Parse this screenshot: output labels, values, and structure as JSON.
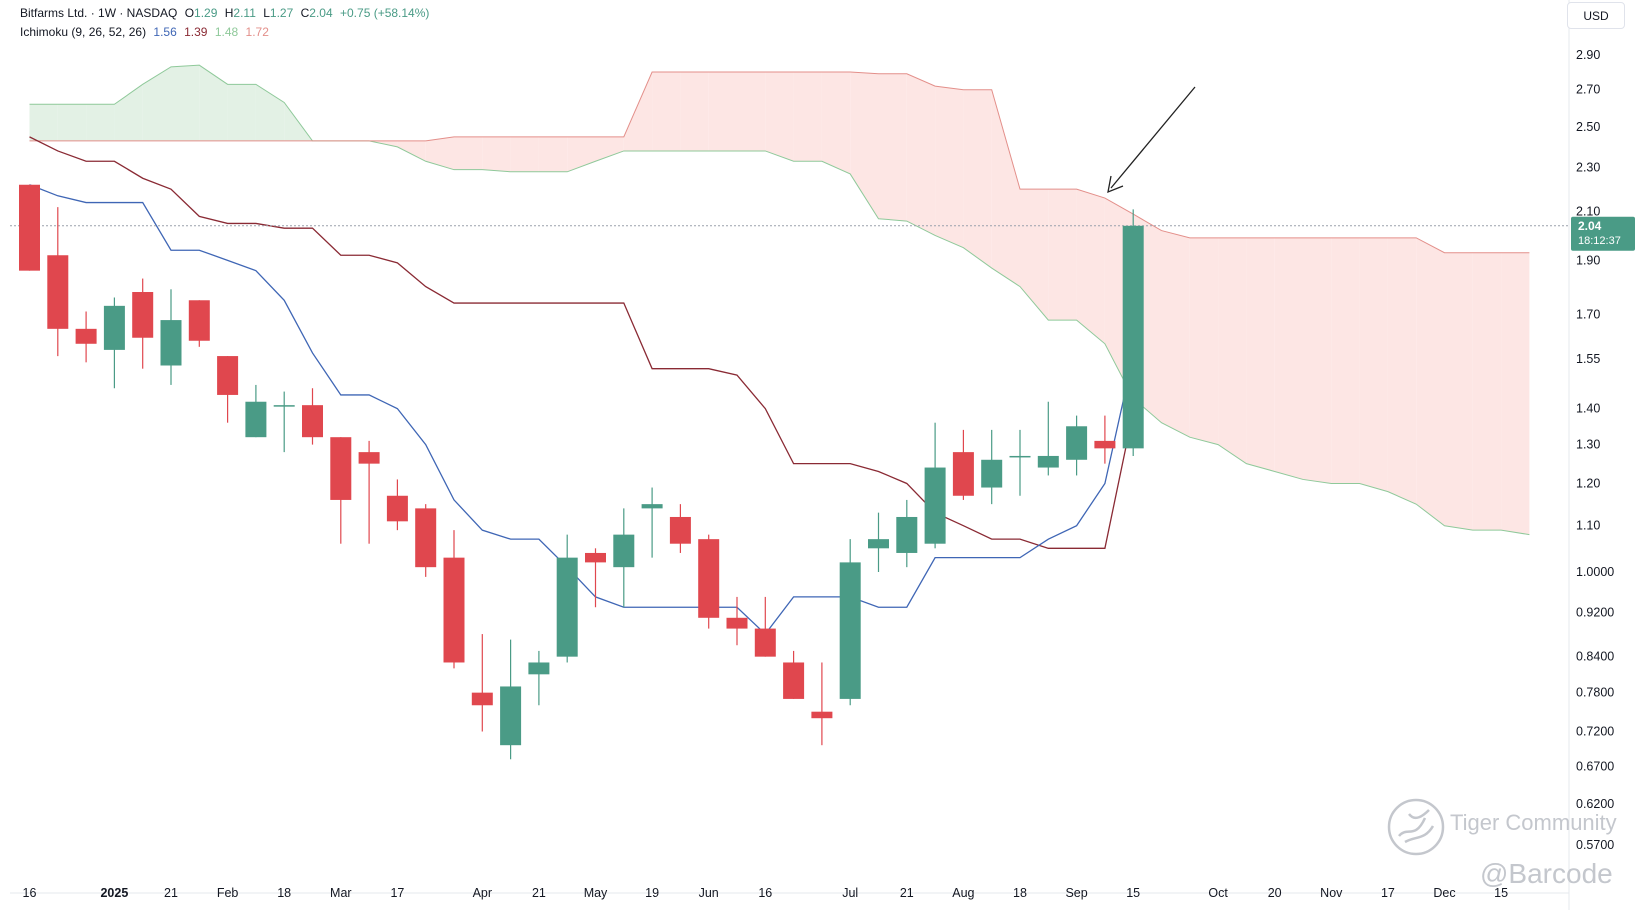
{
  "header": {
    "symbol": "Bitfarms Ltd. · 1W · NASDAQ",
    "open_label": "O",
    "open": "1.29",
    "high_label": "H",
    "high": "2.11",
    "low_label": "L",
    "low": "1.27",
    "close_label": "C",
    "close": "2.04",
    "change": "+0.75 (+58.14%)",
    "indicator": "Ichimoku (9, 26, 52, 26)",
    "ind_v1": "1.56",
    "ind_v2": "1.39",
    "ind_v3": "1.48",
    "ind_v4": "1.72"
  },
  "currency_button": "USD",
  "price_badge": {
    "price": "2.04",
    "countdown": "18:12:37"
  },
  "watermark": {
    "brand": "Tiger Community",
    "handle": "@Barcode"
  },
  "colors": {
    "up": "#4a9b86",
    "down": "#e0474e",
    "conversion": "#3f66b5",
    "base": "#8a2a34",
    "cloud_bull": "#e3f1e5",
    "cloud_bear": "#fde6e4",
    "span_a": "#8fc99a",
    "span_b": "#e38f8a",
    "arrow": "#222222"
  },
  "chart_data": {
    "type": "candlestick",
    "scale": "log",
    "ylim": [
      0.55,
      3.05
    ],
    "y_ticks": [
      "2.90",
      "2.70",
      "2.50",
      "2.30",
      "2.10",
      "1.90",
      "1.70",
      "1.55",
      "1.40",
      "1.30",
      "1.20",
      "1.10",
      "1.0000",
      "0.9200",
      "0.8400",
      "0.7800",
      "0.7200",
      "0.6700",
      "0.6200",
      "0.5700"
    ],
    "x_tick_labels": [
      "16",
      "2025",
      "21",
      "Feb",
      "18",
      "Mar",
      "17",
      "Apr",
      "21",
      "May",
      "19",
      "Jun",
      "16",
      "Jul",
      "21",
      "Aug",
      "18",
      "Sep",
      "15",
      "Oct",
      "20",
      "Nov",
      "17",
      "Dec",
      "15"
    ],
    "x_tick_index": [
      0,
      3,
      5,
      7,
      9,
      11,
      13,
      16,
      18,
      20,
      22,
      24,
      26,
      29,
      31,
      33,
      35,
      37,
      39,
      42,
      44,
      46,
      48,
      50,
      52
    ],
    "candles": [
      {
        "o": 2.22,
        "h": 2.22,
        "l": 1.86,
        "c": 1.86
      },
      {
        "o": 1.92,
        "h": 2.12,
        "l": 1.56,
        "c": 1.65
      },
      {
        "o": 1.65,
        "h": 1.71,
        "l": 1.54,
        "c": 1.6
      },
      {
        "o": 1.58,
        "h": 1.76,
        "l": 1.46,
        "c": 1.73
      },
      {
        "o": 1.78,
        "h": 1.83,
        "l": 1.52,
        "c": 1.62
      },
      {
        "o": 1.53,
        "h": 1.79,
        "l": 1.47,
        "c": 1.68
      },
      {
        "o": 1.75,
        "h": 1.75,
        "l": 1.59,
        "c": 1.61
      },
      {
        "o": 1.56,
        "h": 1.56,
        "l": 1.36,
        "c": 1.44
      },
      {
        "o": 1.32,
        "h": 1.47,
        "l": 1.32,
        "c": 1.42
      },
      {
        "o": 1.41,
        "h": 1.45,
        "l": 1.28,
        "c": 1.41
      },
      {
        "o": 1.41,
        "h": 1.46,
        "l": 1.3,
        "c": 1.32
      },
      {
        "o": 1.32,
        "h": 1.32,
        "l": 1.06,
        "c": 1.16
      },
      {
        "o": 1.28,
        "h": 1.31,
        "l": 1.06,
        "c": 1.25
      },
      {
        "o": 1.17,
        "h": 1.21,
        "l": 1.09,
        "c": 1.11
      },
      {
        "o": 1.14,
        "h": 1.15,
        "l": 0.99,
        "c": 1.01
      },
      {
        "o": 1.03,
        "h": 1.09,
        "l": 0.82,
        "c": 0.83
      },
      {
        "o": 0.78,
        "h": 0.88,
        "l": 0.72,
        "c": 0.76
      },
      {
        "o": 0.7,
        "h": 0.87,
        "l": 0.68,
        "c": 0.79
      },
      {
        "o": 0.81,
        "h": 0.85,
        "l": 0.76,
        "c": 0.83
      },
      {
        "o": 0.84,
        "h": 1.08,
        "l": 0.83,
        "c": 1.03
      },
      {
        "o": 1.04,
        "h": 1.05,
        "l": 0.93,
        "c": 1.02
      },
      {
        "o": 1.01,
        "h": 1.14,
        "l": 0.93,
        "c": 1.08
      },
      {
        "o": 1.14,
        "h": 1.19,
        "l": 1.03,
        "c": 1.15
      },
      {
        "o": 1.12,
        "h": 1.15,
        "l": 1.04,
        "c": 1.06
      },
      {
        "o": 1.07,
        "h": 1.08,
        "l": 0.89,
        "c": 0.91
      },
      {
        "o": 0.91,
        "h": 0.95,
        "l": 0.86,
        "c": 0.89
      },
      {
        "o": 0.89,
        "h": 0.95,
        "l": 0.84,
        "c": 0.84
      },
      {
        "o": 0.83,
        "h": 0.85,
        "l": 0.77,
        "c": 0.77
      },
      {
        "o": 0.75,
        "h": 0.83,
        "l": 0.7,
        "c": 0.74
      },
      {
        "o": 0.77,
        "h": 1.07,
        "l": 0.76,
        "c": 1.02
      },
      {
        "o": 1.05,
        "h": 1.13,
        "l": 1.0,
        "c": 1.07
      },
      {
        "o": 1.04,
        "h": 1.16,
        "l": 1.01,
        "c": 1.12
      },
      {
        "o": 1.06,
        "h": 1.36,
        "l": 1.05,
        "c": 1.24
      },
      {
        "o": 1.28,
        "h": 1.34,
        "l": 1.16,
        "c": 1.17
      },
      {
        "o": 1.19,
        "h": 1.34,
        "l": 1.15,
        "c": 1.26
      },
      {
        "o": 1.27,
        "h": 1.34,
        "l": 1.17,
        "c": 1.27
      },
      {
        "o": 1.24,
        "h": 1.42,
        "l": 1.22,
        "c": 1.27
      },
      {
        "o": 1.26,
        "h": 1.38,
        "l": 1.22,
        "c": 1.35
      },
      {
        "o": 1.31,
        "h": 1.38,
        "l": 1.25,
        "c": 1.29
      },
      {
        "o": 1.29,
        "h": 2.11,
        "l": 1.27,
        "c": 2.04
      }
    ],
    "conversion_line": [
      2.22,
      2.17,
      2.14,
      2.14,
      2.14,
      1.94,
      1.94,
      1.9,
      1.86,
      1.75,
      1.57,
      1.44,
      1.44,
      1.4,
      1.3,
      1.16,
      1.09,
      1.07,
      1.07,
      1.01,
      0.95,
      0.93,
      0.93,
      0.93,
      0.93,
      0.93,
      0.88,
      0.95,
      0.95,
      0.95,
      0.93,
      0.93,
      1.03,
      1.03,
      1.03,
      1.03,
      1.07,
      1.1,
      1.2,
      1.56
    ],
    "base_line": [
      2.45,
      2.38,
      2.33,
      2.33,
      2.25,
      2.2,
      2.08,
      2.05,
      2.05,
      2.03,
      2.03,
      1.92,
      1.92,
      1.89,
      1.8,
      1.74,
      1.74,
      1.74,
      1.74,
      1.74,
      1.74,
      1.74,
      1.52,
      1.52,
      1.52,
      1.5,
      1.4,
      1.25,
      1.25,
      1.25,
      1.23,
      1.2,
      1.13,
      1.1,
      1.07,
      1.07,
      1.05,
      1.05,
      1.05,
      1.39
    ],
    "leading_span_a": [
      2.62,
      2.62,
      2.62,
      2.62,
      2.73,
      2.83,
      2.84,
      2.73,
      2.73,
      2.63,
      2.43,
      2.43,
      2.43,
      2.4,
      2.33,
      2.29,
      2.29,
      2.28,
      2.28,
      2.28,
      2.33,
      2.38,
      2.38,
      2.38,
      2.38,
      2.38,
      2.38,
      2.33,
      2.33,
      2.27,
      2.07,
      2.06,
      2.0,
      1.95,
      1.87,
      1.8,
      1.68,
      1.68,
      1.6,
      1.43,
      1.36,
      1.32,
      1.3,
      1.25,
      1.23,
      1.21,
      1.2,
      1.2,
      1.18,
      1.15,
      1.1,
      1.09,
      1.09,
      1.08
    ],
    "leading_span_b": [
      2.43,
      2.43,
      2.43,
      2.43,
      2.43,
      2.43,
      2.43,
      2.43,
      2.43,
      2.43,
      2.43,
      2.43,
      2.43,
      2.43,
      2.43,
      2.45,
      2.45,
      2.45,
      2.45,
      2.45,
      2.45,
      2.45,
      2.8,
      2.8,
      2.8,
      2.8,
      2.8,
      2.8,
      2.8,
      2.8,
      2.79,
      2.79,
      2.72,
      2.7,
      2.7,
      2.2,
      2.2,
      2.2,
      2.16,
      2.09,
      2.02,
      1.99,
      1.99,
      1.99,
      1.99,
      1.99,
      1.99,
      1.99,
      1.99,
      1.99,
      1.93,
      1.93,
      1.93,
      1.93
    ],
    "last_price": 2.04,
    "annotation": "arrow pointing to last candle high"
  }
}
